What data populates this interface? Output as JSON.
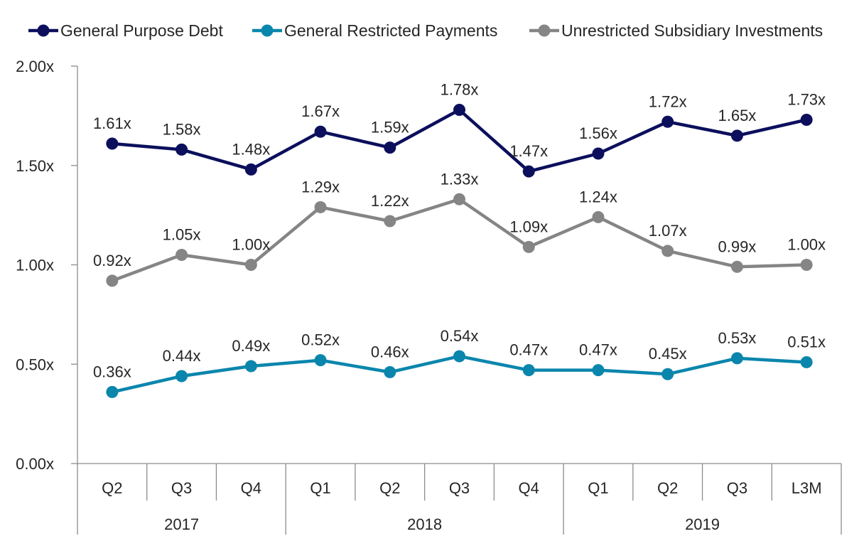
{
  "chart_data": {
    "type": "line",
    "title": "",
    "xlabel": "",
    "ylabel": "",
    "ylim": [
      0,
      2
    ],
    "yticks": [
      "0.00x",
      "0.50x",
      "1.00x",
      "1.50x",
      "2.00x"
    ],
    "ytick_values": [
      0,
      0.5,
      1,
      1.5,
      2
    ],
    "value_suffix": "x",
    "grid": false,
    "legend_position": "top",
    "categories": [
      "Q2",
      "Q3",
      "Q4",
      "Q1",
      "Q2",
      "Q3",
      "Q4",
      "Q1",
      "Q2",
      "Q3",
      "L3M"
    ],
    "groups": [
      {
        "label": "2017",
        "span": 3
      },
      {
        "label": "2018",
        "span": 4
      },
      {
        "label": "2019",
        "span": 4
      }
    ],
    "series": [
      {
        "name": "General Purpose Debt",
        "color": "#0b0f5c",
        "values": [
          1.61,
          1.58,
          1.48,
          1.67,
          1.59,
          1.78,
          1.47,
          1.56,
          1.72,
          1.65,
          1.73
        ]
      },
      {
        "name": "General Restricted Payments",
        "color": "#0a86ad",
        "values": [
          0.36,
          0.44,
          0.49,
          0.52,
          0.46,
          0.54,
          0.47,
          0.47,
          0.45,
          0.53,
          0.51
        ]
      },
      {
        "name": "Unrestricted Subsidiary Investments",
        "color": "#858585",
        "values": [
          0.92,
          1.05,
          1.0,
          1.29,
          1.22,
          1.33,
          1.09,
          1.24,
          1.07,
          0.99,
          1.0
        ]
      }
    ]
  }
}
